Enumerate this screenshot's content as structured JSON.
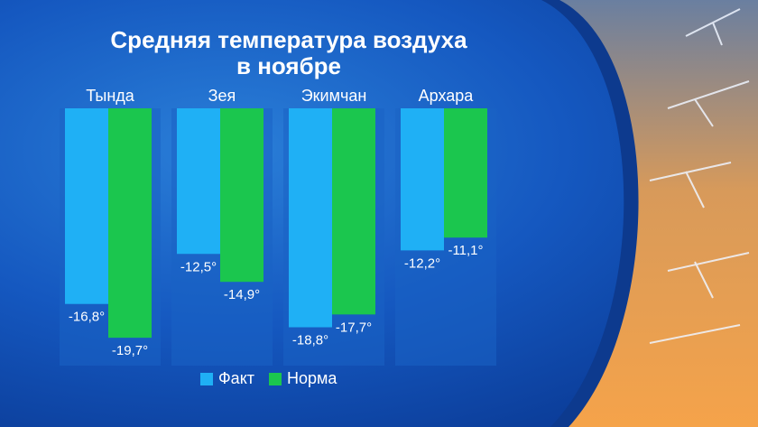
{
  "chart_data": {
    "type": "bar",
    "title": "Средняя температура воздуха в ноябре",
    "title_lines": [
      "Средняя температура воздуха",
      "в ноябре"
    ],
    "categories": [
      "Тында",
      "Зея",
      "Экимчан",
      "Архара"
    ],
    "series": [
      {
        "name": "Факт",
        "values": [
          -16.8,
          -12.5,
          -18.8,
          -12.2
        ],
        "labels": [
          "-16,8°",
          "-12,5°",
          "-18,8°",
          "-12,2°"
        ],
        "color": "#1fb0f5"
      },
      {
        "name": "Норма",
        "values": [
          -19.7,
          -14.9,
          -17.7,
          -11.1
        ],
        "labels": [
          "-19,7°",
          "-14,9°",
          "-17,7°",
          "-11,1°"
        ],
        "color": "#1bc64e"
      }
    ],
    "ylim": [
      -20.5,
      0
    ],
    "grid": false,
    "legend_position": "bottom"
  },
  "colors": {
    "background": "#1558c0",
    "panel": "#1a66c8"
  }
}
